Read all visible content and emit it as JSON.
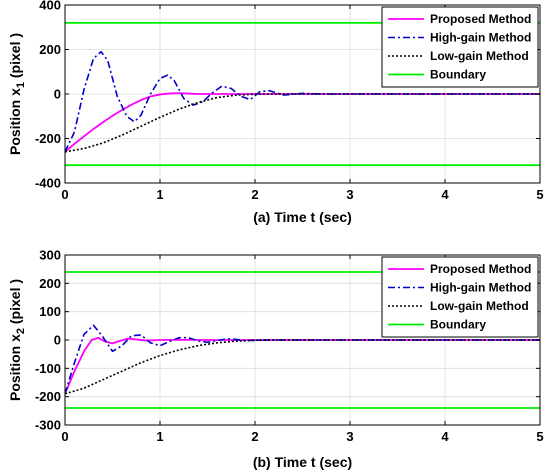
{
  "chart_data": [
    {
      "type": "line",
      "xlabel": "(a) Time t (sec)",
      "ylabel_main": "Position x",
      "ylabel_sub": "1",
      "ylabel_unit": " (pixel )",
      "xlim": [
        0,
        5
      ],
      "ylim": [
        -400,
        400
      ],
      "xticks": [
        0,
        1,
        2,
        3,
        4,
        5
      ],
      "yticks": [
        -400,
        -200,
        0,
        200,
        400
      ],
      "grid": true,
      "legend": "top-right",
      "series": [
        {
          "name": "Proposed Method",
          "color": "#ff00ff",
          "style": "solid",
          "x": [
            0,
            0.1,
            0.2,
            0.3,
            0.4,
            0.5,
            0.6,
            0.7,
            0.8,
            0.9,
            1.0,
            1.1,
            1.2,
            1.3,
            1.4,
            1.6,
            2.0,
            3.0,
            4.0,
            5.0
          ],
          "y": [
            -260,
            -224,
            -190,
            -157,
            -127,
            -98,
            -72,
            -48,
            -27,
            -11,
            -2,
            2,
            4,
            2,
            0,
            0,
            0,
            0,
            0,
            0
          ]
        },
        {
          "name": "High-gain Method",
          "color": "#0000cc",
          "style": "dashdot",
          "x": [
            0,
            0.1,
            0.2,
            0.3,
            0.38,
            0.45,
            0.55,
            0.65,
            0.73,
            0.8,
            0.9,
            1.0,
            1.08,
            1.15,
            1.25,
            1.35,
            1.45,
            1.55,
            1.65,
            1.75,
            1.85,
            1.95,
            2.05,
            2.15,
            2.3,
            2.5,
            2.7,
            3.0,
            4.0,
            5.0
          ],
          "y": [
            -260,
            -170,
            20,
            160,
            190,
            150,
            -10,
            -100,
            -125,
            -95,
            0,
            70,
            85,
            60,
            -20,
            -50,
            -35,
            5,
            35,
            25,
            -10,
            -25,
            10,
            15,
            -5,
            3,
            0,
            0,
            0,
            0
          ]
        },
        {
          "name": "Low-gain Method",
          "color": "#000000",
          "style": "dotted",
          "x": [
            0,
            0.2,
            0.4,
            0.6,
            0.8,
            1.0,
            1.2,
            1.4,
            1.6,
            1.8,
            2.0,
            2.2,
            2.5,
            3.0,
            4.0,
            5.0
          ],
          "y": [
            -260,
            -245,
            -220,
            -185,
            -145,
            -105,
            -68,
            -38,
            -16,
            -5,
            -1,
            0,
            0,
            0,
            0,
            0
          ]
        },
        {
          "name": "Boundary",
          "color": "#00ee00",
          "style": "solid",
          "boundary": [
            320,
            -320
          ]
        }
      ]
    },
    {
      "type": "line",
      "xlabel": "(b) Time t (sec)",
      "ylabel_main": "Position x",
      "ylabel_sub": "2",
      "ylabel_unit": " (pixel )",
      "xlim": [
        0,
        5
      ],
      "ylim": [
        -300,
        300
      ],
      "xticks": [
        0,
        1,
        2,
        3,
        4,
        5
      ],
      "yticks": [
        -300,
        -200,
        -100,
        0,
        100,
        200,
        300
      ],
      "grid": true,
      "legend": "top-right",
      "series": [
        {
          "name": "Proposed Method",
          "color": "#ff00ff",
          "style": "solid",
          "x": [
            0,
            0.1,
            0.2,
            0.28,
            0.35,
            0.42,
            0.5,
            0.58,
            0.66,
            0.75,
            0.85,
            1.0,
            1.2,
            1.5,
            2.0,
            3.0,
            4.0,
            5.0
          ],
          "y": [
            -190,
            -110,
            -40,
            0,
            8,
            -5,
            -12,
            -3,
            5,
            2,
            -2,
            0,
            1,
            0,
            0,
            0,
            0,
            0
          ]
        },
        {
          "name": "High-gain Method",
          "color": "#0000cc",
          "style": "dashdot",
          "x": [
            0,
            0.1,
            0.2,
            0.3,
            0.4,
            0.5,
            0.6,
            0.7,
            0.8,
            0.9,
            1.0,
            1.1,
            1.2,
            1.3,
            1.4,
            1.5,
            1.6,
            1.7,
            1.8,
            1.9,
            2.0,
            2.2,
            2.5,
            3.0,
            4.0,
            5.0
          ],
          "y": [
            -190,
            -80,
            20,
            52,
            10,
            -40,
            -20,
            15,
            18,
            -10,
            -20,
            -5,
            8,
            8,
            -3,
            -8,
            -2,
            4,
            2,
            -2,
            -1,
            0,
            0,
            0,
            0,
            0
          ]
        },
        {
          "name": "Low-gain Method",
          "color": "#000000",
          "style": "dotted",
          "x": [
            0,
            0.2,
            0.4,
            0.6,
            0.8,
            1.0,
            1.2,
            1.4,
            1.6,
            1.8,
            2.0,
            2.2,
            2.5,
            3.0,
            4.0,
            5.0
          ],
          "y": [
            -190,
            -170,
            -140,
            -110,
            -80,
            -55,
            -35,
            -20,
            -10,
            -4,
            -1,
            0,
            0,
            0,
            0,
            0
          ]
        },
        {
          "name": "Boundary",
          "color": "#00ee00",
          "style": "solid",
          "boundary": [
            240,
            -240
          ]
        }
      ]
    }
  ]
}
